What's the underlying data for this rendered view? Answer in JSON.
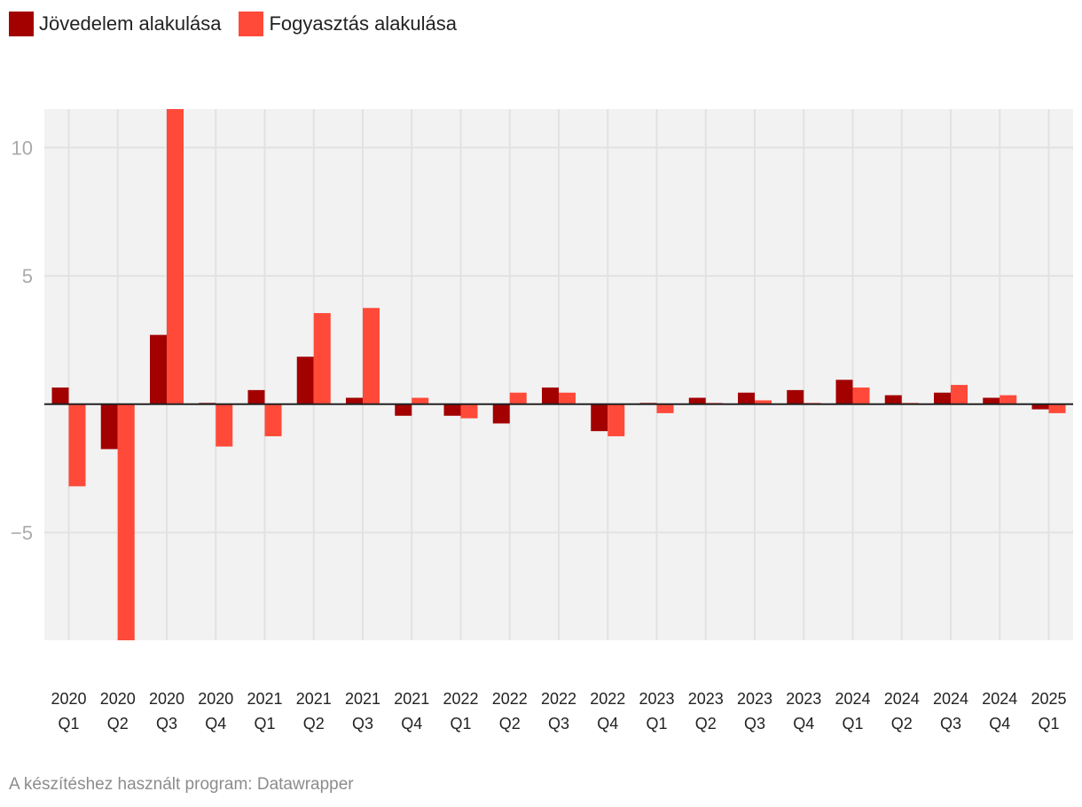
{
  "legend": {
    "series_a_label": "Jövedelem alakulása",
    "series_b_label": "Fogyasztás alakulása"
  },
  "footer": {
    "credit": "A készítéshez használt program: Datawrapper"
  },
  "colors": {
    "series_a": "#a30000",
    "series_b": "#ff4a3a",
    "plot_bg": "#f2f2f2",
    "grid": "#e2e2e2",
    "zero_line": "#222222",
    "tick_y": "#aaaaaa",
    "tick_x": "#222222"
  },
  "chart_data": {
    "type": "bar",
    "title": "",
    "xlabel": "",
    "ylabel": "",
    "ylim": [
      -9.2,
      11.5
    ],
    "yticks": [
      {
        "value": 10,
        "label": "10"
      },
      {
        "value": 5,
        "label": "5"
      },
      {
        "value": -5,
        "label": "−5"
      }
    ],
    "categories": [
      {
        "year": "2020",
        "q": "Q1"
      },
      {
        "year": "2020",
        "q": "Q2"
      },
      {
        "year": "2020",
        "q": "Q3"
      },
      {
        "year": "2020",
        "q": "Q4"
      },
      {
        "year": "2021",
        "q": "Q1"
      },
      {
        "year": "2021",
        "q": "Q2"
      },
      {
        "year": "2021",
        "q": "Q3"
      },
      {
        "year": "2021",
        "q": "Q4"
      },
      {
        "year": "2022",
        "q": "Q1"
      },
      {
        "year": "2022",
        "q": "Q2"
      },
      {
        "year": "2022",
        "q": "Q3"
      },
      {
        "year": "2022",
        "q": "Q4"
      },
      {
        "year": "2023",
        "q": "Q1"
      },
      {
        "year": "2023",
        "q": "Q2"
      },
      {
        "year": "2023",
        "q": "Q3"
      },
      {
        "year": "2023",
        "q": "Q4"
      },
      {
        "year": "2024",
        "q": "Q1"
      },
      {
        "year": "2024",
        "q": "Q2"
      },
      {
        "year": "2024",
        "q": "Q3"
      },
      {
        "year": "2024",
        "q": "Q4"
      },
      {
        "year": "2025",
        "q": "Q1"
      }
    ],
    "series": [
      {
        "name": "Jövedelem alakulása",
        "values": [
          0.65,
          -1.75,
          2.7,
          0.05,
          0.55,
          1.85,
          0.25,
          -0.45,
          -0.45,
          -0.75,
          0.65,
          -1.05,
          0.05,
          0.25,
          0.45,
          0.55,
          0.95,
          0.35,
          0.45,
          0.25,
          -0.2
        ]
      },
      {
        "name": "Fogyasztás alakulása",
        "values": [
          -3.2,
          -9.3,
          11.5,
          -1.65,
          -1.25,
          3.55,
          3.75,
          0.25,
          -0.55,
          0.45,
          0.45,
          -1.25,
          -0.35,
          0.05,
          0.15,
          0.05,
          0.65,
          0.05,
          0.75,
          0.35,
          -0.35
        ]
      }
    ]
  }
}
